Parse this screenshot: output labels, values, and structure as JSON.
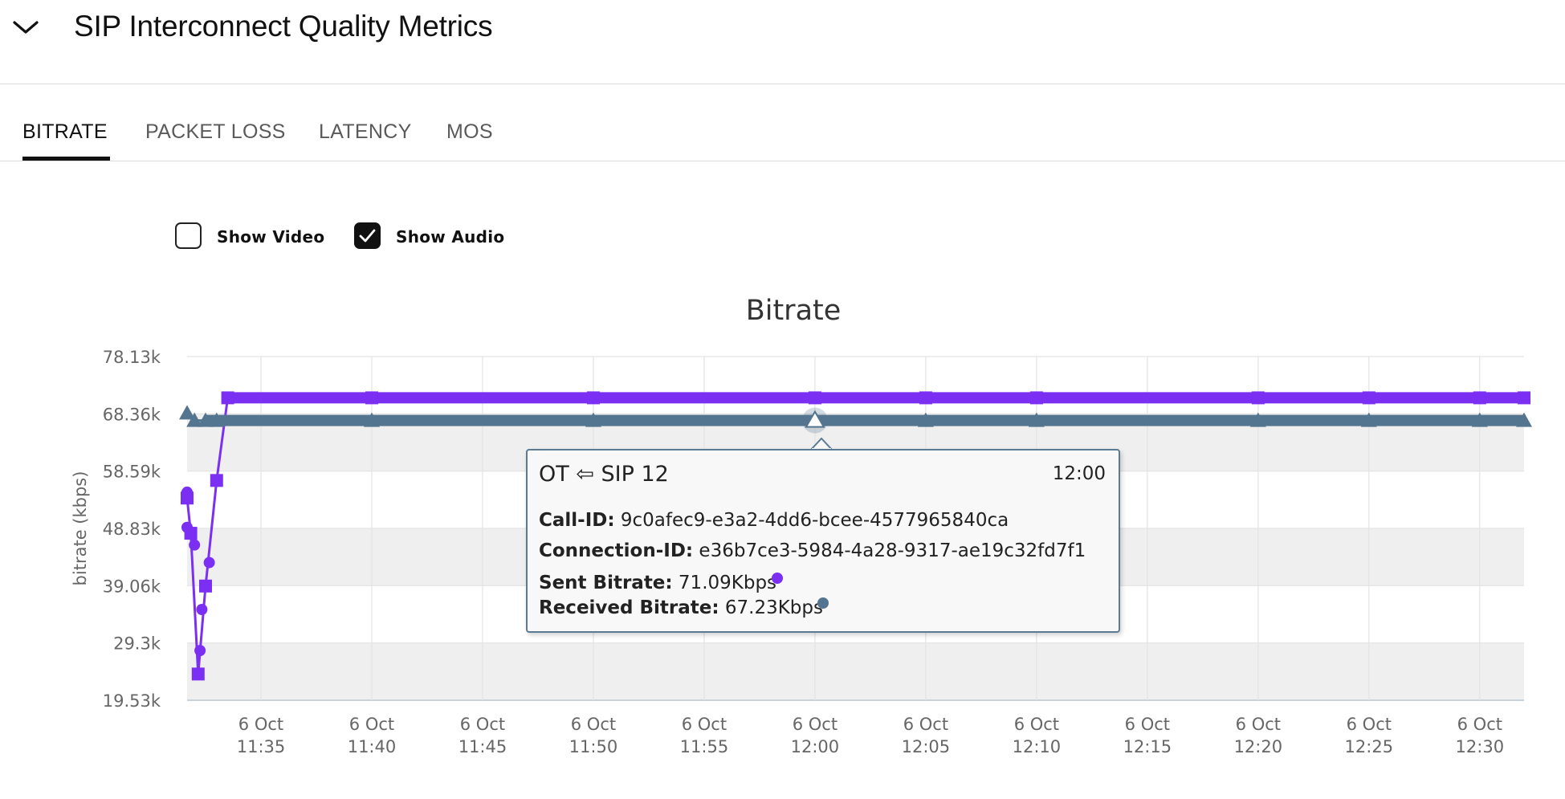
{
  "header": {
    "title": "SIP Interconnect Quality Metrics",
    "collapse_icon": "chevron-down-icon"
  },
  "tabs": [
    {
      "label": "BITRATE",
      "active": true
    },
    {
      "label": "PACKET LOSS",
      "active": false
    },
    {
      "label": "LATENCY",
      "active": false
    },
    {
      "label": "MOS",
      "active": false
    }
  ],
  "toggles": {
    "show_video": {
      "label": "Show Video",
      "checked": false
    },
    "show_audio": {
      "label": "Show Audio",
      "checked": true
    }
  },
  "colors": {
    "sent": "#7b2ff2",
    "received": "#54758f",
    "accent": "#111111",
    "band": "#efefef",
    "grid": "#e3e3e3"
  },
  "chart_data": {
    "type": "line",
    "title": "Bitrate",
    "ylabel": "bitrate (kbps)",
    "xlabel": "",
    "y_ticks": [
      "78.13k",
      "68.36k",
      "58.59k",
      "48.83k",
      "39.06k",
      "29.3k",
      "19.53k"
    ],
    "ylim": [
      19530,
      78130
    ],
    "x_ticks": [
      {
        "date": "6 Oct",
        "time": "11:35"
      },
      {
        "date": "6 Oct",
        "time": "11:40"
      },
      {
        "date": "6 Oct",
        "time": "11:45"
      },
      {
        "date": "6 Oct",
        "time": "11:50"
      },
      {
        "date": "6 Oct",
        "time": "11:55"
      },
      {
        "date": "6 Oct",
        "time": "12:00"
      },
      {
        "date": "6 Oct",
        "time": "12:05"
      },
      {
        "date": "6 Oct",
        "time": "12:10"
      },
      {
        "date": "6 Oct",
        "time": "12:15"
      },
      {
        "date": "6 Oct",
        "time": "12:20"
      },
      {
        "date": "6 Oct",
        "time": "12:25"
      },
      {
        "date": "6 Oct",
        "time": "12:30"
      }
    ],
    "xlim": [
      "11:31:40",
      "12:32:00"
    ],
    "grid": true,
    "series": [
      {
        "name": "Sent Bitrate",
        "color": "#7b2ff2",
        "x": [
          "11:31:40",
          "11:31:50",
          "11:32:10",
          "11:32:30",
          "11:33:00",
          "11:33:30",
          "11:40",
          "11:50",
          "12:00",
          "12:05",
          "12:10",
          "12:20",
          "12:25",
          "12:30",
          "12:32"
        ],
        "y": [
          54000,
          48000,
          24000,
          39000,
          57000,
          71090,
          71090,
          71090,
          71090,
          71090,
          71090,
          71090,
          71090,
          71090,
          71090
        ]
      },
      {
        "name": "Received Bitrate",
        "color": "#54758f",
        "x": [
          "11:31:40",
          "11:32:00",
          "11:32:30",
          "11:33:00",
          "11:40",
          "11:50",
          "12:00",
          "12:05",
          "12:10",
          "12:20",
          "12:25",
          "12:30",
          "12:32"
        ],
        "y": [
          68500,
          67230,
          67230,
          67230,
          67230,
          67230,
          67230,
          67230,
          67230,
          67230,
          67230,
          67230,
          67230
        ]
      }
    ]
  },
  "tooltip": {
    "title": "OT ⇦ SIP 12",
    "time": "12:00",
    "call_id_label": "Call-ID:",
    "call_id": "9c0afec9-e3a2-4dd6-bcee-4577965840ca",
    "connection_id_label": "Connection-ID:",
    "connection_id": "e36b7ce3-5984-4a28-9317-ae19c32fd7f1",
    "sent_label": "Sent Bitrate:",
    "sent_value": "71.09Kbps",
    "received_label": "Received Bitrate:",
    "received_value": "67.23Kbps"
  }
}
